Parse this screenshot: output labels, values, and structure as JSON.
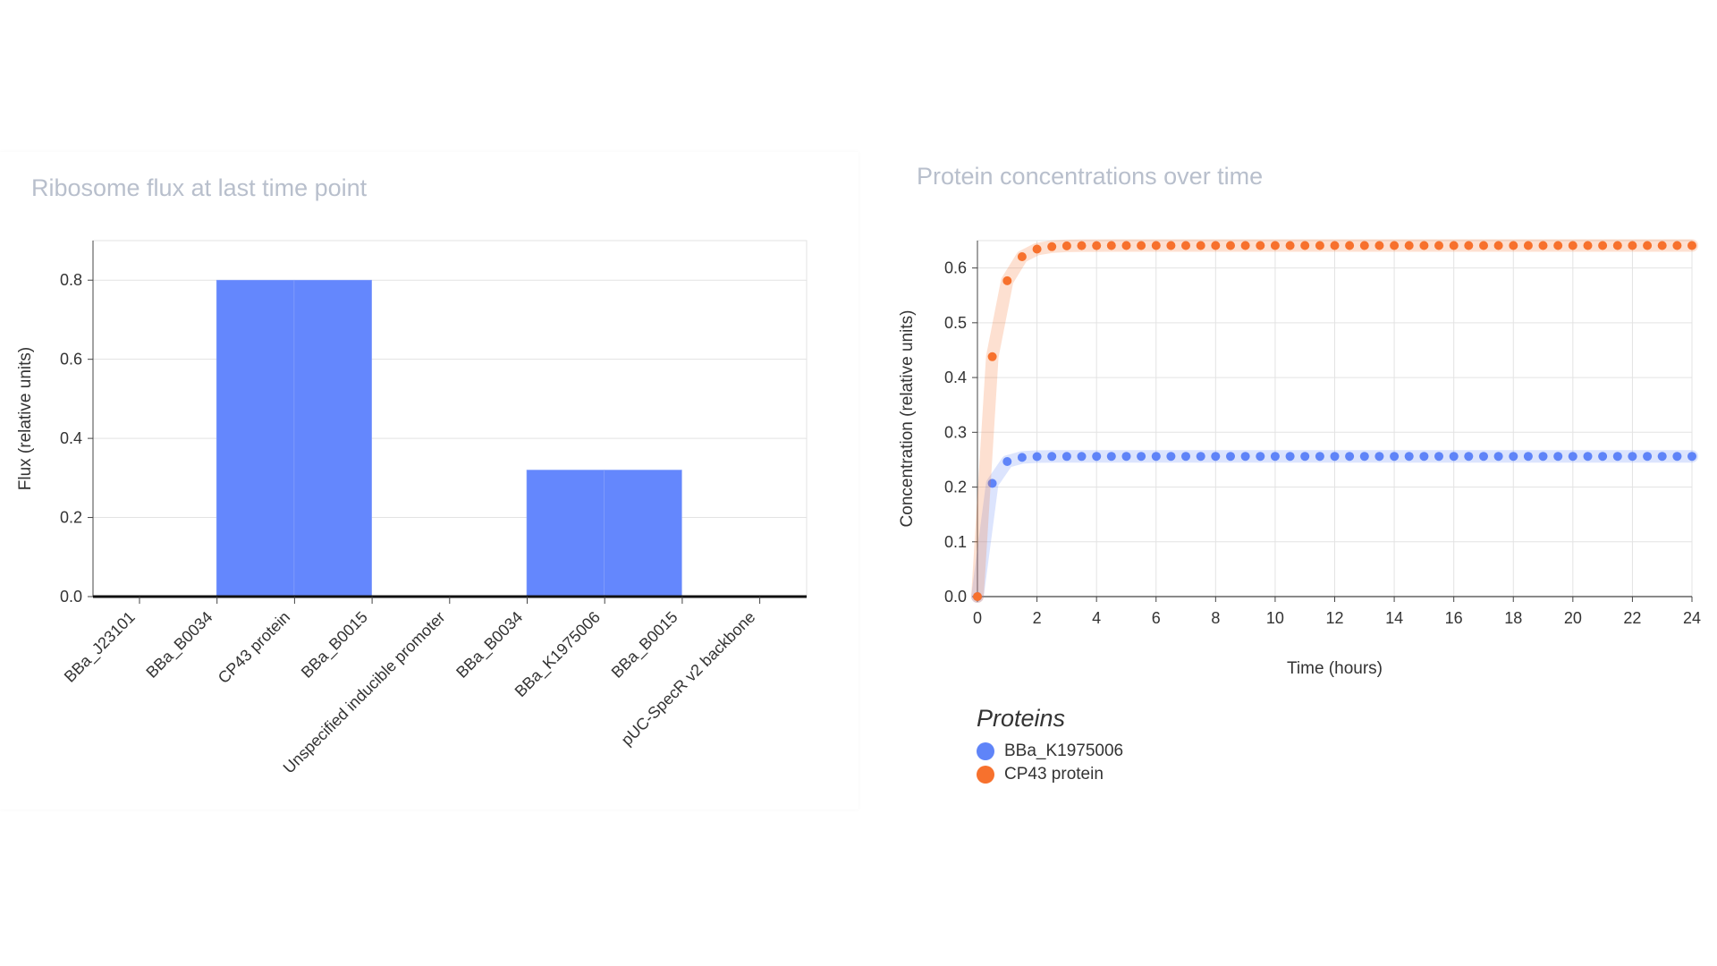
{
  "chart_data": [
    {
      "type": "bar",
      "title": "Ribosome flux at last time point",
      "xlabel": "",
      "ylabel": "Flux (relative units)",
      "categories": [
        "BBa_J23101",
        "BBa_B0034",
        "CP43 protein",
        "BBa_B0015",
        "Unspecified inducible promoter",
        "BBa_B0034",
        "BBa_K1975006",
        "BBa_B0015",
        "pUC-SpecR v2 backbone"
      ],
      "values": [
        0,
        0.8,
        0.8,
        0,
        0,
        0.32,
        0.32,
        0,
        0
      ],
      "ylim": [
        0,
        0.9
      ],
      "yticks": [
        "0.0",
        "0.2",
        "0.4",
        "0.6",
        "0.8"
      ],
      "grid": true,
      "colors": {
        "bar": "#6487fd"
      }
    },
    {
      "type": "scatter",
      "title": "Protein concentrations over time",
      "xlabel": "Time (hours)",
      "ylabel": "Concentration (relative units)",
      "xlim": [
        0,
        24
      ],
      "ylim": [
        0,
        0.65
      ],
      "xticks": [
        "0",
        "2",
        "4",
        "6",
        "8",
        "10",
        "12",
        "14",
        "16",
        "18",
        "20",
        "22",
        "24"
      ],
      "yticks": [
        "0.0",
        "0.1",
        "0.2",
        "0.3",
        "0.4",
        "0.5",
        "0.6"
      ],
      "grid": true,
      "legend": {
        "title": "Proteins",
        "placement": "bottom-left"
      },
      "series": [
        {
          "name": "BBa_K1975006",
          "color": "#5f84f8",
          "plateau": 0.256,
          "rate": 3.3
        },
        {
          "name": "CP43 protein",
          "color": "#f7712d",
          "plateau": 0.641,
          "rate": 2.3
        }
      ]
    }
  ]
}
